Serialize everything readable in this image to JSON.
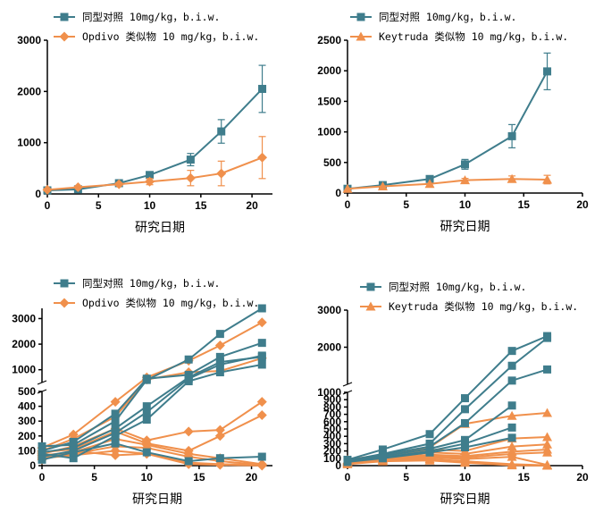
{
  "colors": {
    "control": "#3f7d8c",
    "treatment": "#f0904c"
  },
  "chart_data": [
    {
      "type": "line",
      "panel": "top-left",
      "xlabel": "研究日期",
      "ylabel": "",
      "xlim": [
        0,
        22
      ],
      "ylim": [
        0,
        3000
      ],
      "xticks": [
        "0",
        "5",
        "10",
        "15",
        "20"
      ],
      "yticks": [
        "0",
        "1000",
        "2000",
        "3000"
      ],
      "legend": "top-left",
      "series": [
        {
          "name": "同型对照 10mg/kg，b.i.w.",
          "marker": "square",
          "color": "#3f7d8c",
          "x": [
            0,
            3,
            7,
            10,
            14,
            17,
            21
          ],
          "y": [
            70,
            90,
            210,
            370,
            670,
            1220,
            2050
          ],
          "err": [
            10,
            15,
            25,
            40,
            120,
            230,
            460
          ]
        },
        {
          "name": "Opdivo 类似物 10 mg/kg，b.i.w.",
          "marker": "diamond",
          "color": "#f0904c",
          "x": [
            0,
            3,
            7,
            10,
            14,
            17,
            21
          ],
          "y": [
            80,
            130,
            190,
            240,
            310,
            400,
            710
          ],
          "err": [
            10,
            15,
            25,
            60,
            150,
            240,
            410
          ]
        }
      ]
    },
    {
      "type": "line",
      "panel": "top-right",
      "xlabel": "研究日期",
      "ylabel": "",
      "xlim": [
        0,
        20
      ],
      "ylim": [
        0,
        2500
      ],
      "xticks": [
        "0",
        "5",
        "10",
        "15",
        "20"
      ],
      "yticks": [
        "0",
        "500",
        "1000",
        "1500",
        "2000",
        "2500"
      ],
      "legend": "top-left",
      "series": [
        {
          "name": "同型对照 10mg/kg，b.i.w.",
          "marker": "square",
          "color": "#3f7d8c",
          "x": [
            0,
            3,
            7,
            10,
            14,
            17
          ],
          "y": [
            70,
            130,
            230,
            470,
            930,
            1990
          ],
          "err": [
            10,
            15,
            25,
            80,
            190,
            300
          ]
        },
        {
          "name": "Keytruda 类似物 10 mg/kg，b.i.w.",
          "marker": "triangle",
          "color": "#f0904c",
          "x": [
            0,
            3,
            7,
            10,
            14,
            17
          ],
          "y": [
            70,
            110,
            150,
            210,
            230,
            220
          ],
          "err": [
            10,
            15,
            20,
            30,
            50,
            70
          ]
        }
      ]
    },
    {
      "type": "line",
      "panel": "bottom-left",
      "xlabel": "研究日期",
      "ylabel": "",
      "xlim": [
        0,
        22
      ],
      "ylim_lower": [
        0,
        500
      ],
      "ylim_upper": [
        500,
        3400
      ],
      "xticks": [
        "0",
        "5",
        "10",
        "15",
        "20"
      ],
      "yticks": [
        "0",
        "100",
        "200",
        "300",
        "400",
        "500",
        "1000",
        "2000",
        "3000"
      ],
      "legend": "top-left",
      "legend_labels": [
        {
          "name": "同型对照 10mg/kg，b.i.w.",
          "marker": "square",
          "color": "#3f7d8c"
        },
        {
          "name": "Opdivo 类似物 10 mg/kg，b.i.w.",
          "marker": "diamond",
          "color": "#f0904c"
        }
      ],
      "x": [
        0,
        3,
        7,
        10,
        14,
        17,
        21
      ],
      "series": [
        {
          "group": "control",
          "y": [
            130,
            140,
            300,
            600,
            1400,
            2400,
            3400
          ]
        },
        {
          "group": "control",
          "y": [
            100,
            160,
            350,
            650,
            800,
            1500,
            2050
          ]
        },
        {
          "group": "control",
          "y": [
            90,
            120,
            250,
            400,
            700,
            1300,
            1500
          ]
        },
        {
          "group": "control",
          "y": [
            60,
            100,
            220,
            360,
            650,
            1200,
            1550
          ]
        },
        {
          "group": "control",
          "y": [
            80,
            50,
            200,
            310,
            550,
            900,
            1200
          ]
        },
        {
          "group": "control",
          "y": [
            40,
            90,
            150,
            90,
            30,
            50,
            60
          ]
        },
        {
          "group": "treatment",
          "y": [
            120,
            210,
            430,
            700,
            1350,
            1950,
            2850
          ]
        },
        {
          "group": "treatment",
          "y": [
            100,
            180,
            330,
            620,
            900,
            950,
            1450
          ]
        },
        {
          "group": "treatment",
          "y": [
            80,
            130,
            250,
            170,
            230,
            240,
            430
          ]
        },
        {
          "group": "treatment",
          "y": [
            90,
            110,
            230,
            150,
            100,
            200,
            340
          ]
        },
        {
          "group": "treatment",
          "y": [
            70,
            90,
            180,
            140,
            80,
            50,
            10
          ]
        },
        {
          "group": "treatment",
          "y": [
            60,
            80,
            130,
            120,
            60,
            30,
            5
          ]
        },
        {
          "group": "treatment",
          "y": [
            50,
            70,
            100,
            80,
            20,
            10,
            5
          ]
        },
        {
          "group": "treatment",
          "y": [
            40,
            100,
            70,
            80,
            10,
            5,
            0
          ]
        }
      ]
    },
    {
      "type": "line",
      "panel": "bottom-right",
      "xlabel": "研究日期",
      "ylabel": "",
      "xlim": [
        0,
        20
      ],
      "ylim_lower": [
        0,
        1000
      ],
      "ylim_upper": [
        1000,
        3000
      ],
      "xticks": [
        "0",
        "5",
        "10",
        "15",
        "20"
      ],
      "yticks": [
        "0",
        "100",
        "200",
        "300",
        "400",
        "500",
        "600",
        "700",
        "800",
        "900",
        "1000",
        "2000",
        "3000"
      ],
      "legend": "top-left",
      "legend_labels": [
        {
          "name": "同型对照 10mg/kg，b.i.w.",
          "marker": "square",
          "color": "#3f7d8c"
        },
        {
          "name": "Keytruda 类似物 10 mg/kg，b.i.w.",
          "marker": "triangle",
          "color": "#f0904c"
        }
      ],
      "x": [
        0,
        3,
        7,
        10,
        14,
        17
      ],
      "series": [
        {
          "group": "control",
          "y": [
            80,
            220,
            430,
            920,
            1900,
            2300
          ]
        },
        {
          "group": "control",
          "y": [
            70,
            160,
            300,
            770,
            1500,
            2250
          ]
        },
        {
          "group": "control",
          "y": [
            60,
            150,
            260,
            580,
            1100,
            1400
          ]
        },
        {
          "group": "control",
          "y": [
            70,
            130,
            230,
            350,
            820,
            0
          ]
        },
        {
          "group": "control",
          "y": [
            60,
            110,
            200,
            300,
            520,
            0
          ]
        },
        {
          "group": "control",
          "y": [
            50,
            100,
            180,
            250,
            380,
            0
          ]
        },
        {
          "group": "treatment",
          "y": [
            80,
            150,
            250,
            570,
            680,
            720
          ]
        },
        {
          "group": "treatment",
          "y": [
            70,
            130,
            220,
            200,
            370,
            390
          ]
        },
        {
          "group": "treatment",
          "y": [
            60,
            110,
            180,
            160,
            260,
            290
          ]
        },
        {
          "group": "treatment",
          "y": [
            60,
            100,
            150,
            130,
            190,
            220
          ]
        },
        {
          "group": "treatment",
          "y": [
            50,
            90,
            130,
            110,
            160,
            180
          ]
        },
        {
          "group": "treatment",
          "y": [
            40,
            80,
            110,
            90,
            120,
            10
          ]
        },
        {
          "group": "treatment",
          "y": [
            30,
            70,
            90,
            60,
            20,
            5
          ]
        },
        {
          "group": "treatment",
          "y": [
            20,
            60,
            70,
            40,
            5,
            0
          ]
        }
      ]
    }
  ]
}
